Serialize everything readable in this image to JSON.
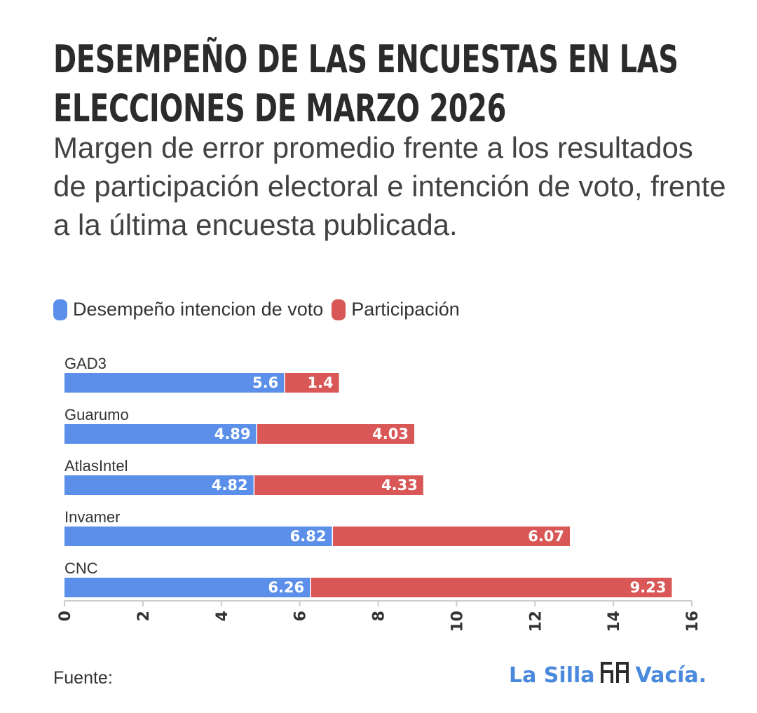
{
  "title_lines": [
    "DESEMPEÑO DE LAS ENCUESTAS EN LAS",
    "ELECCIONES DE MARZO 2026"
  ],
  "subtitle": "Margen de error promedio frente a los resultados de participación electoral e intención de voto, frente a la última encuesta publicada.",
  "legend": [
    {
      "label": "Desempeño intencion de voto",
      "color": "#5b8fea"
    },
    {
      "label": "Participación",
      "color": "#d95757"
    }
  ],
  "source_label": "Fuente:",
  "logo": {
    "left": "La Silla",
    "right": "Vacía.",
    "icon": "chairs-icon"
  },
  "chart_data": {
    "type": "bar",
    "orientation": "horizontal",
    "stacked": true,
    "title": "DESEMPEÑO DE LAS ENCUESTAS EN LAS ELECCIONES DE MARZO 2026",
    "categories": [
      "GAD3",
      "Guarumo",
      "AtlasIntel",
      "Invamer",
      "CNC"
    ],
    "series": [
      {
        "name": "Desempeño intencion de voto",
        "color": "#5b8fea",
        "values": [
          5.6,
          4.89,
          4.82,
          6.82,
          6.26
        ]
      },
      {
        "name": "Participación",
        "color": "#d95757",
        "values": [
          1.4,
          4.03,
          4.33,
          6.07,
          9.23
        ]
      }
    ],
    "value_labels": [
      [
        "5.6",
        "4.89",
        "4.82",
        "6.82",
        "6.26"
      ],
      [
        "1.4",
        "4.03",
        "4.33",
        "6.07",
        "9.23"
      ]
    ],
    "xlim": [
      0,
      16
    ],
    "xticks": [
      0,
      2,
      4,
      6,
      8,
      10,
      12,
      14,
      16
    ],
    "xtick_labels": [
      "0",
      "2",
      "4",
      "6",
      "8",
      "10",
      "12",
      "14",
      "16"
    ],
    "xlabel": "",
    "ylabel": "",
    "grid": false,
    "legend_position": "top-left"
  }
}
